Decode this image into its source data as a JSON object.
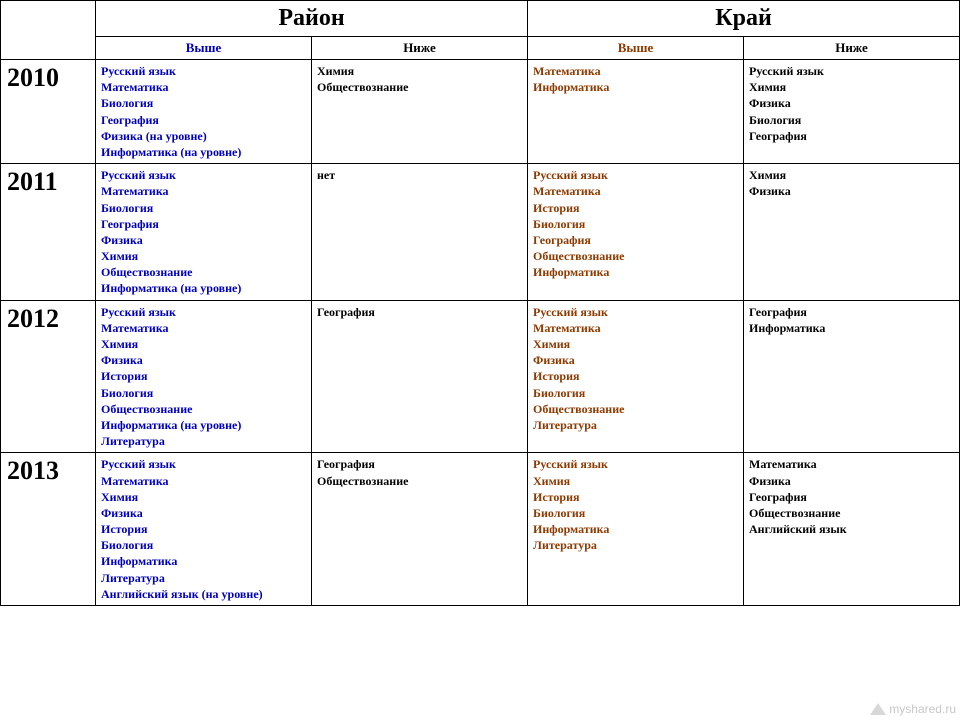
{
  "headers": {
    "district": "Район",
    "region": "Край",
    "higher": "Выше",
    "lower": "Ниже"
  },
  "colors": {
    "district_higher": "#0000b3",
    "district_lower": "#000000",
    "region_higher": "#8b3a00",
    "region_lower": "#000000",
    "border": "#000000",
    "background": "#ffffff"
  },
  "rows": [
    {
      "year": "2010",
      "district_higher": [
        "Русский язык",
        "Математика",
        "Биология",
        "География",
        "Физика (на уровне)",
        "Информатика (на уровне)"
      ],
      "district_lower": [
        "Химия",
        "Обществознание"
      ],
      "region_higher": [
        "Математика",
        "Информатика"
      ],
      "region_lower": [
        "Русский язык",
        "Химия",
        "Физика",
        "Биология",
        "География"
      ]
    },
    {
      "year": "2011",
      "district_higher": [
        "Русский язык",
        "Математика",
        "Биология",
        "География",
        "Физика",
        "Химия",
        "Обществознание",
        "Информатика (на уровне)"
      ],
      "district_lower": [
        "нет"
      ],
      "region_higher": [
        "Русский язык",
        "Математика",
        "История",
        "Биология",
        "География",
        "Обществознание",
        "Информатика"
      ],
      "region_lower": [
        "Химия",
        "Физика"
      ]
    },
    {
      "year": "2012",
      "district_higher": [
        "Русский язык",
        "Математика",
        "Химия",
        "Физика",
        "История",
        "Биология",
        "Обществознание",
        "Информатика (на уровне)",
        "Литература"
      ],
      "district_lower": [
        "География"
      ],
      "region_higher": [
        "Русский язык",
        "Математика",
        "Химия",
        "Физика",
        "История",
        "Биология",
        "Обществознание",
        "Литература"
      ],
      "region_lower": [
        "География",
        "Информатика"
      ]
    },
    {
      "year": "2013",
      "district_higher": [
        "Русский язык",
        "Математика",
        "Химия",
        "Физика",
        "История",
        "Биология",
        "Информатика",
        "Литература",
        "Английский язык (на уровне)"
      ],
      "district_lower": [
        "География",
        "Обществознание"
      ],
      "region_higher": [
        "Русский язык",
        "Химия",
        "История",
        "Биология",
        "Информатика",
        "Литература"
      ],
      "region_lower": [
        "Математика",
        "Физика",
        "География",
        "Обществознание",
        "Английский язык"
      ]
    }
  ],
  "watermark": "myshared.ru",
  "typography": {
    "year_fontsize": 26,
    "group_header_fontsize": 24,
    "sub_header_fontsize": 13,
    "cell_fontsize": 12,
    "font_family": "Times New Roman"
  }
}
